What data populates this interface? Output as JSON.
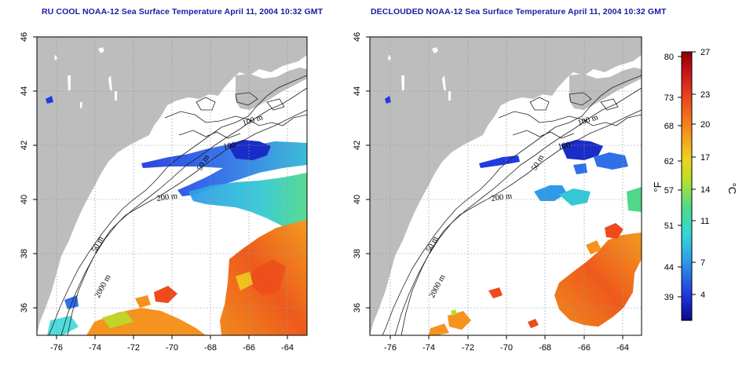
{
  "titles": {
    "left": "RU COOL NOAA-12 Sea Surface Temperature April 11, 2004 10:32 GMT",
    "right": "DECLOUDED NOAA-12 Sea Surface Temperature April 11, 2004 10:32 GMT"
  },
  "map": {
    "lon_ticks": [
      "-76",
      "-74",
      "-72",
      "-70",
      "-68",
      "-66",
      "-64"
    ],
    "lat_ticks": [
      "36",
      "38",
      "40",
      "42",
      "44",
      "46"
    ],
    "contour_labels": [
      "100 m",
      "100",
      "50 m",
      "200 m",
      "50 m",
      "2000 m"
    ]
  },
  "colorbar": {
    "fahrenheit_ticks": [
      "80",
      "73",
      "68",
      "62",
      "57",
      "51",
      "44",
      "39"
    ],
    "celsius_ticks": [
      "27",
      "23",
      "20",
      "17",
      "14",
      "11",
      "7",
      "4"
    ],
    "fahrenheit_unit": "°F",
    "celsius_unit": "°C"
  },
  "colors": {
    "land": "#bdbdbd",
    "title": "#1a1aa6",
    "scale": [
      "#0a0a8a",
      "#1f3be0",
      "#2f9be8",
      "#33d6d6",
      "#4fd98a",
      "#b5e02a",
      "#f0d21e",
      "#f5931e",
      "#ee4a1c",
      "#c8101a",
      "#8a0000"
    ]
  }
}
